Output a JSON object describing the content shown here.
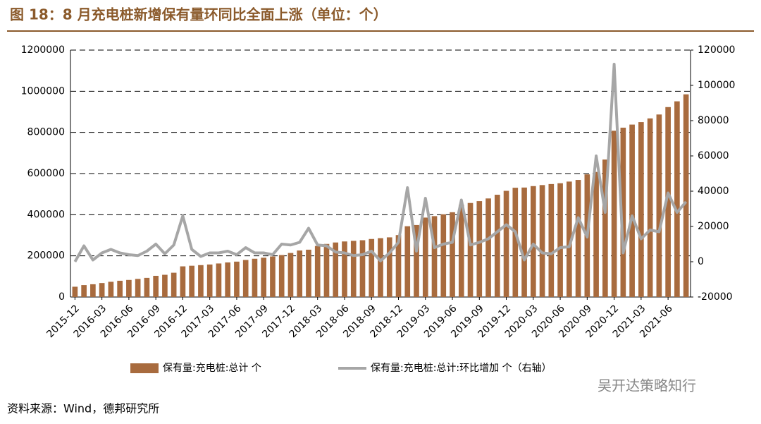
{
  "chart_data": {
    "type": "bar",
    "title": "图 18：8 月充电桩新增保有量环同比全面上涨（单位：个）",
    "source": "资料来源：Wind，德邦研究所",
    "watermark": "吴开达策略知行",
    "categories": [
      "2015-12",
      null,
      null,
      "2016-03",
      null,
      null,
      "2016-06",
      null,
      null,
      "2016-09",
      null,
      null,
      "2016-12",
      null,
      null,
      "2017-03",
      null,
      null,
      "2017-06",
      null,
      null,
      "2017-09",
      null,
      null,
      "2017-12",
      null,
      null,
      "2018-03",
      null,
      null,
      "2018-06",
      null,
      null,
      "2018-09",
      null,
      null,
      "2018-12",
      null,
      null,
      "2019-03",
      null,
      null,
      "2019-06",
      null,
      null,
      "2019-09",
      null,
      null,
      "2019-12",
      null,
      null,
      "2020-03",
      null,
      null,
      "2020-06",
      null,
      null,
      "2020-09",
      null,
      null,
      "2020-12",
      null,
      null,
      "2021-03",
      null,
      null,
      "2021-06",
      null,
      null
    ],
    "series": [
      {
        "name": "保有量:充电桩:总计 个",
        "type": "bar",
        "color": "#a86b3e",
        "values": [
          50000,
          58000,
          62000,
          68000,
          74000,
          79000,
          83000,
          88000,
          93000,
          103000,
          108000,
          118000,
          149000,
          152000,
          155000,
          158000,
          163000,
          168000,
          172000,
          180000,
          186000,
          191000,
          197000,
          204000,
          214000,
          226000,
          230000,
          248000,
          258000,
          265000,
          270000,
          273000,
          276000,
          282000,
          286000,
          290000,
          301000,
          344000,
          350000,
          386000,
          393000,
          402000,
          412000,
          448000,
          457000,
          466000,
          479000,
          497000,
          516000,
          531000,
          532000,
          539000,
          544000,
          549000,
          553000,
          561000,
          569000,
          596000,
          608000,
          668000,
          808000,
          823000,
          838000,
          850000,
          868000,
          887000,
          923000,
          951000,
          985000
        ]
      },
      {
        "name": "保有量:充电桩:总计:环比增加 个（右轴）",
        "type": "line",
        "axis": "y2",
        "color": "#a6a6a6",
        "values": [
          0,
          9000,
          1000,
          5000,
          7000,
          5000,
          4000,
          3500,
          6000,
          10000,
          4500,
          9500,
          26000,
          7000,
          3000,
          5000,
          5000,
          6000,
          4000,
          8000,
          5000,
          5000,
          4000,
          10000,
          9500,
          11000,
          19000,
          9500,
          9000,
          5500,
          5000,
          3500,
          4000,
          6000,
          500,
          5000,
          11000,
          42000,
          6000,
          36000,
          8000,
          10000,
          11000,
          35000,
          9500,
          11000,
          13000,
          17000,
          21000,
          17000,
          1000,
          10000,
          5000,
          4500,
          8000,
          8500,
          25000,
          14000,
          60000,
          28000,
          112000,
          5000,
          26000,
          13000,
          18000,
          17000,
          39000,
          28000,
          34000
        ]
      }
    ],
    "ylim": [
      0,
      1200000
    ],
    "yticks": [
      0,
      200000,
      400000,
      600000,
      800000,
      1000000,
      1200000
    ],
    "y2lim": [
      -20000,
      120000
    ],
    "y2ticks": [
      -20000,
      0,
      20000,
      40000,
      60000,
      80000,
      100000,
      120000
    ],
    "grid": true
  }
}
